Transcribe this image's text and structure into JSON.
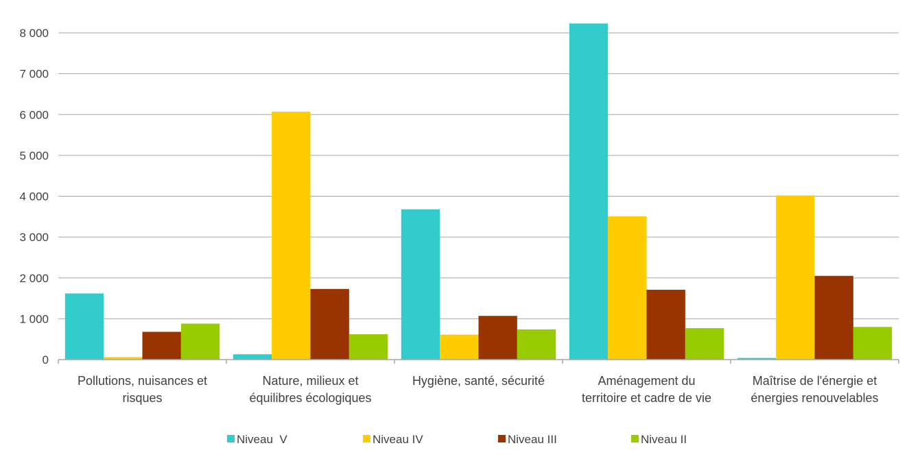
{
  "chart_data": {
    "type": "bar",
    "title": "",
    "xlabel": "",
    "ylabel": "",
    "ylim": [
      0,
      8000
    ],
    "yticks": [
      {
        "value": 0,
        "label": "0"
      },
      {
        "value": 1000,
        "label": "1 000"
      },
      {
        "value": 2000,
        "label": "2 000"
      },
      {
        "value": 3000,
        "label": "3 000"
      },
      {
        "value": 4000,
        "label": "4 000"
      },
      {
        "value": 5000,
        "label": "5 000"
      },
      {
        "value": 6000,
        "label": "6 000"
      },
      {
        "value": 7000,
        "label": "7 000"
      },
      {
        "value": 8000,
        "label": "8 000"
      }
    ],
    "grid": true,
    "legend": "bottom",
    "categories": [
      [
        "Pollutions, nuisances et",
        "risques"
      ],
      [
        "Nature, milieux et",
        "équilibres écologiques"
      ],
      [
        "Hygiène, santé, sécurité"
      ],
      [
        "Aménagement du",
        "territoire et cadre de vie"
      ],
      [
        "Maîtrise de l'énergie et",
        "énergies renouvelables"
      ]
    ],
    "series": [
      {
        "name": "Niveau  V",
        "color": "#33cccc",
        "values": [
          1620,
          130,
          3680,
          8230,
          40
        ]
      },
      {
        "name": "Niveau IV",
        "color": "#ffcc00",
        "values": [
          60,
          6070,
          610,
          3510,
          4020
        ]
      },
      {
        "name": "Niveau III",
        "color": "#993300",
        "values": [
          680,
          1730,
          1070,
          1710,
          2050
        ]
      },
      {
        "name": "Niveau II",
        "color": "#99cc00",
        "values": [
          880,
          620,
          740,
          770,
          800
        ]
      }
    ]
  }
}
